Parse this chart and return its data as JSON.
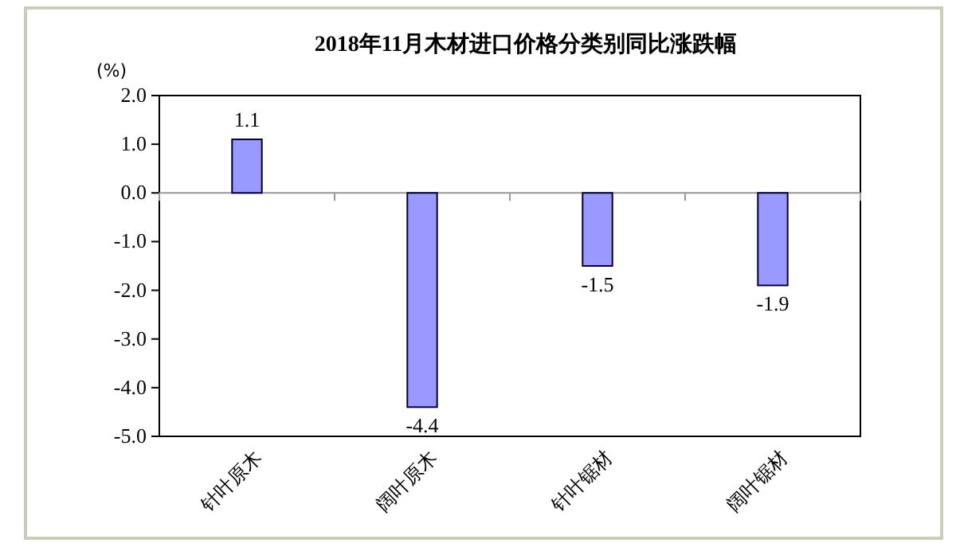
{
  "chart_data": {
    "type": "bar",
    "title": "2018年11月木材进口价格分类别同比涨跌幅",
    "ylabel": "(%)",
    "categories": [
      "针叶原木",
      "阔叶原木",
      "针叶锯材",
      "阔叶锯材"
    ],
    "values": [
      1.1,
      -4.4,
      -1.5,
      -1.9
    ],
    "color": "#9999ff",
    "data_labels": true,
    "ylim": [
      -5,
      2
    ],
    "yticks": [
      {
        "value": -5,
        "label": "-5.0"
      },
      {
        "value": -4,
        "label": "-4.0"
      },
      {
        "value": -3,
        "label": "-3.0"
      },
      {
        "value": -2,
        "label": "-2.0"
      },
      {
        "value": -1,
        "label": "-1.0"
      },
      {
        "value": 0,
        "label": "0.0"
      },
      {
        "value": 1,
        "label": "1.0"
      },
      {
        "value": 2,
        "label": "2.0"
      }
    ],
    "ref_lines": [
      {
        "axis": "y",
        "value": 0,
        "color": "#999999"
      }
    ]
  }
}
